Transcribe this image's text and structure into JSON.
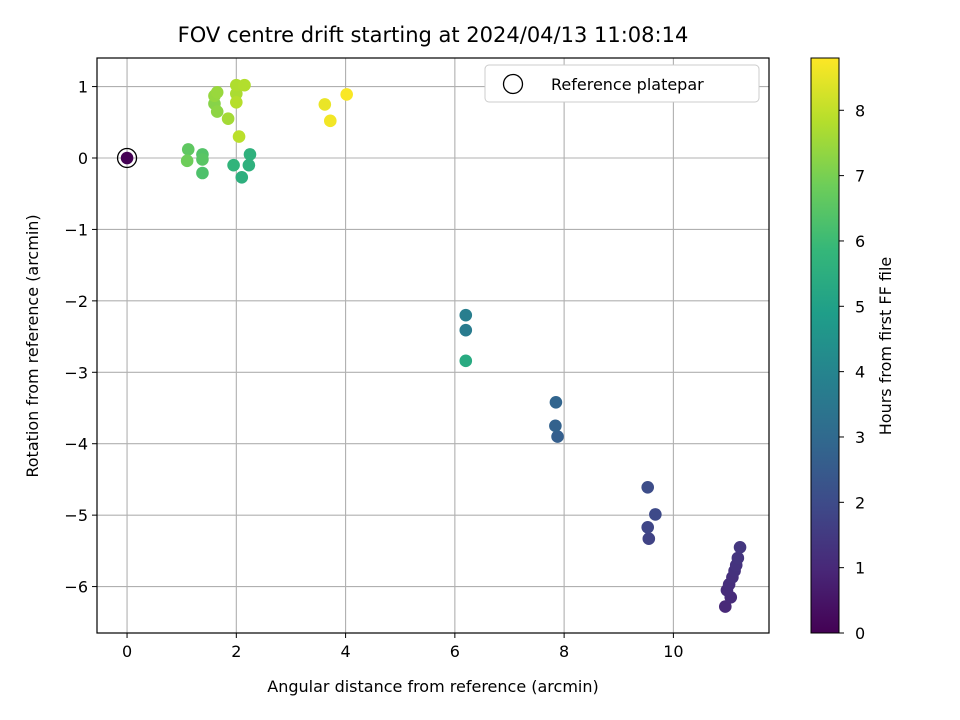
{
  "chart_data": {
    "type": "scatter",
    "title": "FOV centre drift starting at 2024/04/13 11:08:14",
    "xlabel": "Angular distance from reference (arcmin)",
    "ylabel": "Rotation from reference (arcmin)",
    "xlim": [
      -0.55,
      11.75
    ],
    "ylim": [
      -6.65,
      1.4
    ],
    "xticks": [
      0,
      2,
      4,
      6,
      8,
      10
    ],
    "yticks": [
      1,
      0,
      -1,
      -2,
      -3,
      -4,
      -5,
      -6
    ],
    "xtick_labels": [
      "0",
      "2",
      "4",
      "6",
      "8",
      "10"
    ],
    "ytick_labels": [
      "1",
      "0",
      "−1",
      "−2",
      "−3",
      "−4",
      "−5",
      "−6"
    ],
    "grid": true,
    "legend": {
      "position": "top-right",
      "entries": [
        {
          "label": "Reference platepar",
          "marker": "open-circle"
        }
      ]
    },
    "colorbar": {
      "label": "Hours from first FF file",
      "range": [
        0,
        8.8
      ],
      "ticks": [
        0,
        1,
        2,
        3,
        4,
        5,
        6,
        7,
        8
      ],
      "tick_labels": [
        "0",
        "1",
        "2",
        "3",
        "4",
        "5",
        "6",
        "7",
        "8"
      ],
      "colormap": "viridis"
    },
    "reference_point": {
      "x": 0,
      "y": 0
    },
    "points": [
      {
        "x": 0,
        "y": 0,
        "hours": 0
      },
      {
        "x": 10.95,
        "y": -6.28,
        "hours": 1.0
      },
      {
        "x": 11.05,
        "y": -6.15,
        "hours": 1.05
      },
      {
        "x": 10.98,
        "y": -6.05,
        "hours": 1.1
      },
      {
        "x": 11.02,
        "y": -5.97,
        "hours": 1.15
      },
      {
        "x": 11.08,
        "y": -5.87,
        "hours": 1.2
      },
      {
        "x": 11.12,
        "y": -5.78,
        "hours": 1.25
      },
      {
        "x": 11.15,
        "y": -5.7,
        "hours": 1.3
      },
      {
        "x": 11.18,
        "y": -5.6,
        "hours": 1.35
      },
      {
        "x": 11.22,
        "y": -5.45,
        "hours": 1.4
      },
      {
        "x": 9.55,
        "y": -5.33,
        "hours": 1.75
      },
      {
        "x": 9.53,
        "y": -5.17,
        "hours": 1.85
      },
      {
        "x": 9.67,
        "y": -4.99,
        "hours": 1.95
      },
      {
        "x": 9.53,
        "y": -4.61,
        "hours": 2.05
      },
      {
        "x": 7.88,
        "y": -3.9,
        "hours": 2.65
      },
      {
        "x": 7.84,
        "y": -3.75,
        "hours": 2.75
      },
      {
        "x": 7.85,
        "y": -3.42,
        "hours": 2.85
      },
      {
        "x": 6.2,
        "y": -2.41,
        "hours": 3.65
      },
      {
        "x": 6.2,
        "y": -2.2,
        "hours": 3.75
      },
      {
        "x": 6.2,
        "y": -2.84,
        "hours": 5.35
      },
      {
        "x": 2.1,
        "y": -0.27,
        "hours": 5.55
      },
      {
        "x": 2.23,
        "y": -0.1,
        "hours": 5.6
      },
      {
        "x": 2.25,
        "y": 0.05,
        "hours": 5.65
      },
      {
        "x": 1.95,
        "y": -0.1,
        "hours": 5.75
      },
      {
        "x": 1.38,
        "y": -0.21,
        "hours": 6.3
      },
      {
        "x": 1.38,
        "y": 0.05,
        "hours": 6.4
      },
      {
        "x": 1.38,
        "y": -0.02,
        "hours": 6.5
      },
      {
        "x": 1.12,
        "y": 0.12,
        "hours": 6.6
      },
      {
        "x": 1.1,
        "y": -0.04,
        "hours": 6.85
      },
      {
        "x": 1.6,
        "y": 0.76,
        "hours": 7.2
      },
      {
        "x": 1.65,
        "y": 0.65,
        "hours": 7.3
      },
      {
        "x": 1.6,
        "y": 0.87,
        "hours": 7.4
      },
      {
        "x": 1.65,
        "y": 0.92,
        "hours": 7.45
      },
      {
        "x": 1.85,
        "y": 0.55,
        "hours": 7.6
      },
      {
        "x": 2.0,
        "y": 0.9,
        "hours": 7.7
      },
      {
        "x": 2.0,
        "y": 1.02,
        "hours": 7.75
      },
      {
        "x": 2.15,
        "y": 1.02,
        "hours": 7.8
      },
      {
        "x": 2.0,
        "y": 0.78,
        "hours": 7.85
      },
      {
        "x": 2.05,
        "y": 0.3,
        "hours": 7.9
      },
      {
        "x": 3.62,
        "y": 0.75,
        "hours": 8.55
      },
      {
        "x": 3.72,
        "y": 0.52,
        "hours": 8.65
      },
      {
        "x": 4.02,
        "y": 0.89,
        "hours": 8.75
      }
    ]
  }
}
